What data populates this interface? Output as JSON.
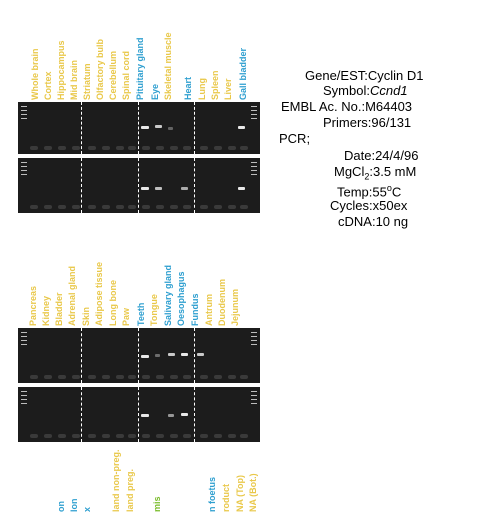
{
  "panel1": {
    "lanes": [
      {
        "label": "Whole brain",
        "color": "#e9c84a"
      },
      {
        "label": "Cortex",
        "color": "#e9c84a"
      },
      {
        "label": "Hippocampus",
        "color": "#e9c84a"
      },
      {
        "label": "Mid brain",
        "color": "#e9c84a"
      },
      {
        "label": "Striatum",
        "color": "#e9c84a"
      },
      {
        "label": "Olfactory bulb",
        "color": "#e9c84a"
      },
      {
        "label": "Cerebellum",
        "color": "#e9c84a"
      },
      {
        "label": "Spinal cord",
        "color": "#e9c84a"
      },
      {
        "label": "Pituitary gland",
        "color": "#2e9fd0"
      },
      {
        "label": "Eye",
        "color": "#2e9fd0"
      },
      {
        "label": "Skeletal muscle",
        "color": "#e9c84a"
      },
      {
        "label": "Heart",
        "color": "#2e9fd0"
      },
      {
        "label": "Lung",
        "color": "#e9c84a"
      },
      {
        "label": "Spleen",
        "color": "#e9c84a"
      },
      {
        "label": "Liver",
        "color": "#e9c84a"
      },
      {
        "label": "Gall bladder",
        "color": "#2e9fd0"
      }
    ]
  },
  "panel2": {
    "lanes": [
      {
        "label": "Pancreas",
        "color": "#e9c84a"
      },
      {
        "label": "Kidney",
        "color": "#e9c84a"
      },
      {
        "label": "Bladder",
        "color": "#e9c84a"
      },
      {
        "label": "Adrenal gland",
        "color": "#e9c84a"
      },
      {
        "label": "Skin",
        "color": "#e9c84a"
      },
      {
        "label": "Adipose tissue",
        "color": "#e9c84a"
      },
      {
        "label": "Long bone",
        "color": "#e9c84a"
      },
      {
        "label": "Paw",
        "color": "#e9c84a"
      },
      {
        "label": "Teeth",
        "color": "#2e9fd0"
      },
      {
        "label": "Tongue",
        "color": "#e9c84a"
      },
      {
        "label": "Salivary gland",
        "color": "#2e9fd0"
      },
      {
        "label": "Oesophagus",
        "color": "#2e9fd0"
      },
      {
        "label": "Fundus",
        "color": "#2e9fd0"
      },
      {
        "label": "Antrum",
        "color": "#e9c84a"
      },
      {
        "label": "Duodenum",
        "color": "#e9c84a"
      },
      {
        "label": "Jejunum",
        "color": "#e9c84a"
      }
    ]
  },
  "panel3": {
    "lanes": [
      {
        "label": "on",
        "color": "#2e9fd0"
      },
      {
        "label": "lon",
        "color": "#2e9fd0"
      },
      {
        "label": "x",
        "color": "#2e9fd0"
      },
      {
        "label": "land non-preg.",
        "color": "#e9c84a"
      },
      {
        "label": "land preg.",
        "color": "#e9c84a"
      },
      {
        "label": "mis",
        "color": "#7cbd2e"
      },
      {
        "label": "",
        "color": "#2e9fd0"
      },
      {
        "label": "n foetus",
        "color": "#2e9fd0"
      },
      {
        "label": "roduct",
        "color": "#e9c84a"
      },
      {
        "label": "NA (Top)",
        "color": "#e9c84a"
      },
      {
        "label": "NA (Bot.)",
        "color": "#e9c84a"
      }
    ]
  },
  "info": {
    "gene_key": "Gene/EST:",
    "gene_val": "Cyclin D1",
    "symbol_key": "Symbol:",
    "symbol_val": "Ccnd1",
    "embl_key": "EMBL Ac. No.:",
    "embl_val": "M64403",
    "primers_key": "Primers:",
    "primers_val": "96/131",
    "pcr_label": "PCR;",
    "date_key": "Date:",
    "date_val": "24/4/96",
    "mgcl_key": "MgCl",
    "mgcl_sub": "2",
    "mgcl_sep": ":",
    "mgcl_val": "3.5 mM",
    "temp_key": "Temp:",
    "temp_val": "55",
    "temp_sup": "o",
    "temp_unit": "C",
    "cycles_key": "Cycles:",
    "cycles_val": "x50ex",
    "cdna_key": "cDNA:",
    "cdna_val": "10 ng"
  }
}
